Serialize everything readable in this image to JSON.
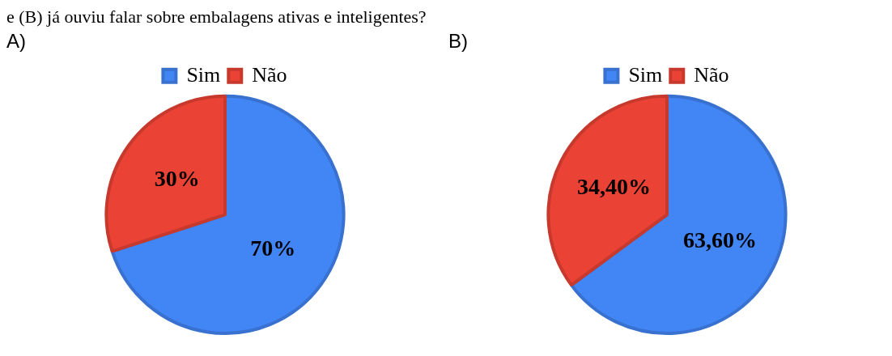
{
  "chart_data": [
    {
      "type": "pie",
      "title": "A)",
      "annotations": [
        "e (B) já ouviu falar sobre embalagens ativas e inteligentes?"
      ],
      "categories": [
        "Sim",
        "Não"
      ],
      "values": [
        70,
        30
      ],
      "colors": [
        "#4285f4",
        "#ea4335"
      ],
      "value_labels": [
        "70%",
        "30%"
      ],
      "legend": "top"
    },
    {
      "type": "pie",
      "title": "B)",
      "categories": [
        "Sim",
        "Não"
      ],
      "values": [
        63.6,
        34.4
      ],
      "colors": [
        "#4285f4",
        "#ea4335"
      ],
      "value_labels": [
        "63,60%",
        "34,40%"
      ],
      "legend": "top"
    }
  ]
}
